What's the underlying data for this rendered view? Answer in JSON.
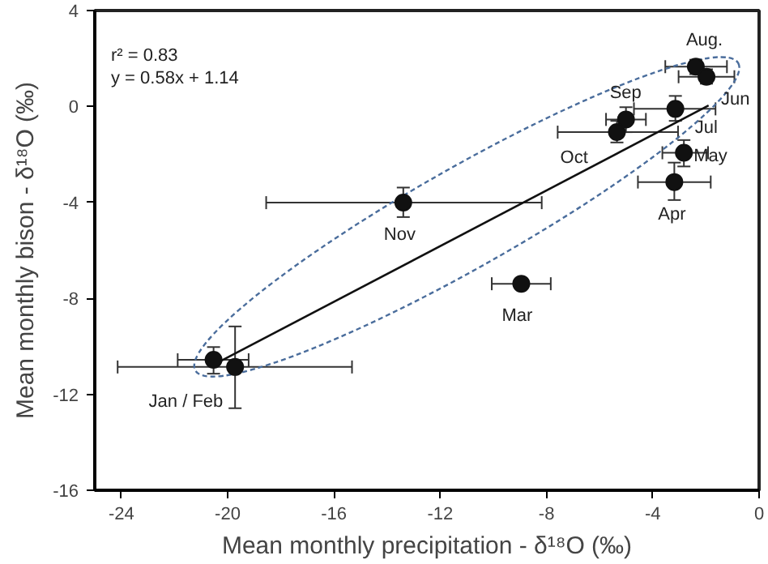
{
  "chart_data": {
    "type": "scatter",
    "xlabel": "Mean monthly precipitation - δ¹⁸O (‰)",
    "ylabel": "Mean monthly bison - δ¹⁸O (‰)",
    "xlim": [
      -25,
      0
    ],
    "ylim": [
      -16,
      4
    ],
    "xticks": [
      -24,
      -20,
      -16,
      -12,
      -8,
      -4,
      0
    ],
    "yticks": [
      -16,
      -12,
      -8,
      -4,
      0,
      4
    ],
    "grid": false,
    "series": [
      {
        "color": "#111111",
        "marker": "circle",
        "x": [
          -2.38,
          -1.98,
          -3.15,
          -5.01,
          -5.35,
          -2.83,
          -3.19,
          -13.39,
          -8.95,
          -20.53,
          -19.72
        ],
        "values": [
          1.66,
          1.24,
          -0.1,
          -0.54,
          -1.07,
          -1.93,
          -3.15,
          -4.01,
          -7.39,
          -10.56,
          -10.86
        ],
        "xerrors": [
          [
            -3.53,
            -1.21
          ],
          [
            -3.03,
            -0.93
          ],
          [
            -4.71,
            -1.64
          ],
          [
            -5.76,
            -4.26
          ],
          [
            -7.58,
            -3.05
          ],
          [
            -3.64,
            -1.92
          ],
          [
            -4.56,
            -1.82
          ],
          [
            -18.55,
            -8.18
          ],
          [
            -10.06,
            -7.84
          ],
          [
            -21.88,
            -19.21
          ],
          [
            -24.14,
            -15.32
          ]
        ],
        "errors": [
          [
            1.35,
            1.95
          ],
          [
            0.95,
            1.55
          ],
          [
            -0.6,
            0.44
          ],
          [
            -1.07,
            -0.03
          ],
          [
            -1.5,
            -0.6
          ],
          [
            -2.5,
            -1.4
          ],
          [
            -3.9,
            -2.34
          ],
          [
            -4.61,
            -3.38
          ],
          [
            -7.5,
            -7.28
          ],
          [
            -11.14,
            -10.03
          ],
          [
            -12.58,
            -9.17
          ]
        ]
      },
      {
        "type": "line",
        "color": "#111111",
        "line_style": "solid",
        "x": [
          -20.53,
          -1.9
        ],
        "values": [
          -10.77,
          0.04
        ]
      }
    ],
    "annotations": [
      "r² = 0.83",
      "y = 0.58x + 1.14",
      {
        "text": "Aug.",
        "x": -2.38,
        "y": 1.66
      },
      {
        "text": "Jun",
        "x": -1.98,
        "y": 1.24
      },
      {
        "text": "Jul",
        "x": -3.15,
        "y": -0.1
      },
      {
        "text": "Sep",
        "x": -5.01,
        "y": -0.54
      },
      {
        "text": "Oct",
        "x": -5.35,
        "y": -1.07
      },
      {
        "text": "May",
        "x": -2.83,
        "y": -1.93
      },
      {
        "text": "Apr",
        "x": -3.19,
        "y": -3.15
      },
      {
        "text": "Nov",
        "x": -13.39,
        "y": -4.01
      },
      {
        "text": "Mar",
        "x": -8.95,
        "y": -7.39
      },
      {
        "text": "Jan / Feb",
        "x": -20.53,
        "y": -10.56
      }
    ]
  }
}
